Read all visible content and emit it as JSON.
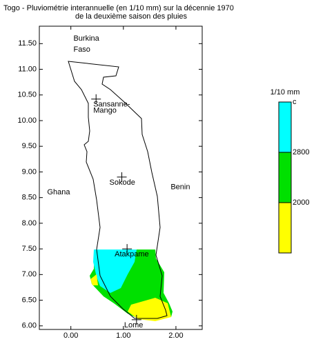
{
  "chart_data": {
    "type": "map",
    "title": "Togo - Pluviométrie interannuelle (en 1/10 mm) sur la décennie 1970",
    "subtitle": "de la deuxième saison des pluies",
    "xlim": [
      -0.6,
      2.5
    ],
    "ylim": [
      5.93,
      11.84
    ],
    "xticks": [
      {
        "value": 0,
        "label": "0.00"
      },
      {
        "value": 1,
        "label": "1.00"
      },
      {
        "value": 2,
        "label": "2.00"
      }
    ],
    "yticks": [
      {
        "value": 6,
        "label": "6.00"
      },
      {
        "value": 6.5,
        "label": "6.50"
      },
      {
        "value": 7,
        "label": "7.00"
      },
      {
        "value": 7.5,
        "label": "7.50"
      },
      {
        "value": 8,
        "label": "8.00"
      },
      {
        "value": 8.5,
        "label": "8.50"
      },
      {
        "value": 9,
        "label": "9.00"
      },
      {
        "value": 9.5,
        "label": "9.50"
      },
      {
        "value": 10,
        "label": "10.00"
      },
      {
        "value": 10.5,
        "label": "10.50"
      },
      {
        "value": 11,
        "label": "11.00"
      },
      {
        "value": 11.5,
        "label": "11.50"
      }
    ],
    "countries": [
      {
        "lines": [
          "Burkina",
          "Faso"
        ],
        "x": 0.05,
        "y": 11.6
      },
      {
        "lines": [
          "Ghana"
        ],
        "x": -0.45,
        "y": 8.6
      },
      {
        "lines": [
          "Benin"
        ],
        "x": 1.9,
        "y": 8.7
      }
    ],
    "cities": [
      {
        "lines": [
          "Sansanne-",
          "Mango"
        ],
        "x": 0.48,
        "y": 10.42
      },
      {
        "lines": [
          "Sokode"
        ],
        "x": 0.97,
        "y": 8.9
      },
      {
        "lines": [
          "Atakpame"
        ],
        "x": 1.07,
        "y": 7.5
      },
      {
        "lines": [
          "Lome"
        ],
        "x": 1.25,
        "y": 6.12
      }
    ],
    "legend": {
      "title": "1/10 mm",
      "colors": [
        "#ffff00",
        "#00e000",
        "#00ffff"
      ],
      "labels": [
        "2000",
        "2800",
        "c"
      ]
    }
  }
}
